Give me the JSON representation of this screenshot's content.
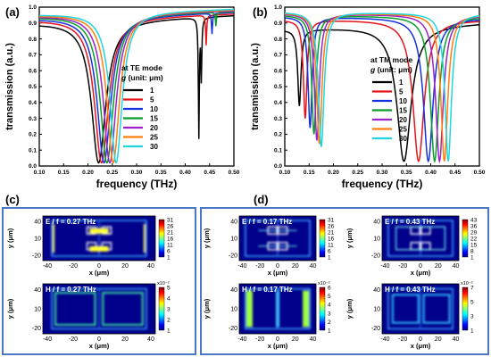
{
  "chart_data": [
    {
      "panel": "(a)",
      "type": "line",
      "mode_label": "at TE mode",
      "legend_title_var": "g",
      "legend_title_unit": " (unit: μm)",
      "xlabel": "frequency (THz)",
      "ylabel": "transmission (a.u.)",
      "xlim": [
        0.1,
        0.5
      ],
      "ylim": [
        0.0,
        1.0
      ],
      "xticks": [
        "0.10",
        "0.15",
        "0.20",
        "0.25",
        "0.30",
        "0.35",
        "0.40",
        "0.45",
        "0.50"
      ],
      "yticks": [
        "0.0",
        "0.1",
        "0.2",
        "0.3",
        "0.4",
        "0.5",
        "0.6",
        "0.7",
        "0.8",
        "0.9",
        "1.0"
      ],
      "legend_position": "right",
      "series": [
        {
          "name": "1",
          "color": "#000000",
          "dip_x": 0.222,
          "dip_y": 0.02,
          "dip_w": 0.036,
          "base_left": 0.9,
          "base_right": 0.95,
          "tail": 0.014,
          "spikes": [
            [
              0.428,
              0.15
            ],
            [
              0.433,
              0.52
            ]
          ]
        },
        {
          "name": "5",
          "color": "#e5141a",
          "dip_x": 0.228,
          "dip_y": 0.02,
          "dip_w": 0.035,
          "base_left": 0.92,
          "base_right": 0.96,
          "tail": 0.012,
          "spikes": [
            [
              0.443,
              0.76
            ]
          ]
        },
        {
          "name": "10",
          "color": "#1530e0",
          "dip_x": 0.233,
          "dip_y": 0.02,
          "dip_w": 0.034,
          "base_left": 0.93,
          "base_right": 0.97,
          "tail": 0.01,
          "spikes": [
            [
              0.455,
              0.83
            ]
          ]
        },
        {
          "name": "15",
          "color": "#0a9d2a",
          "dip_x": 0.239,
          "dip_y": 0.02,
          "dip_w": 0.033,
          "base_left": 0.94,
          "base_right": 0.975,
          "tail": 0.009,
          "spikes": [
            [
              0.463,
              0.88
            ]
          ]
        },
        {
          "name": "20",
          "color": "#9a22c8",
          "dip_x": 0.245,
          "dip_y": 0.02,
          "dip_w": 0.032,
          "base_left": 0.945,
          "base_right": 0.98,
          "tail": 0.008,
          "spikes": []
        },
        {
          "name": "25",
          "color": "#ff7f0a",
          "dip_x": 0.252,
          "dip_y": 0.02,
          "dip_w": 0.031,
          "base_left": 0.95,
          "base_right": 0.985,
          "tail": 0.007,
          "spikes": []
        },
        {
          "name": "30",
          "color": "#1fd6e0",
          "dip_x": 0.258,
          "dip_y": 0.02,
          "dip_w": 0.03,
          "base_left": 0.955,
          "base_right": 0.99,
          "tail": 0.006,
          "spikes": []
        }
      ]
    },
    {
      "panel": "(b)",
      "type": "line",
      "mode_label": "at TM mode",
      "legend_title_var": "g",
      "legend_title_unit": " (unit: μm)",
      "xlabel": "frequency (THz)",
      "ylabel": "transmission (a.u.)",
      "xlim": [
        0.1,
        0.5
      ],
      "ylim": [
        0.0,
        1.0
      ],
      "xticks": [
        "0.10",
        "0.15",
        "0.20",
        "0.25",
        "0.30",
        "0.35",
        "0.40",
        "0.45",
        "0.50"
      ],
      "yticks": [
        "0.0",
        "0.1",
        "0.2",
        "0.3",
        "0.4",
        "0.5",
        "0.6",
        "0.7",
        "0.8",
        "0.9",
        "1.0"
      ],
      "legend_position": "right",
      "series": [
        {
          "name": "1",
          "color": "#000000",
          "dips": [
            [
              0.13,
              0.38,
              0.008
            ],
            [
              0.345,
              0.03,
              0.035
            ]
          ],
          "base_left": 0.86,
          "base_right": 0.9
        },
        {
          "name": "5",
          "color": "#e5141a",
          "dips": [
            [
              0.142,
              0.3,
              0.009
            ],
            [
              0.375,
              0.03,
              0.028
            ]
          ],
          "base_left": 0.92,
          "base_right": 0.92
        },
        {
          "name": "10",
          "color": "#1530e0",
          "dips": [
            [
              0.152,
              0.24,
              0.01
            ],
            [
              0.395,
              0.03,
              0.024
            ]
          ],
          "base_left": 0.94,
          "base_right": 0.93
        },
        {
          "name": "15",
          "color": "#0a9d2a",
          "dips": [
            [
              0.16,
              0.2,
              0.011
            ],
            [
              0.408,
              0.03,
              0.021
            ]
          ],
          "base_left": 0.95,
          "base_right": 0.94
        },
        {
          "name": "20",
          "color": "#9a22c8",
          "dips": [
            [
              0.166,
              0.16,
              0.012
            ],
            [
              0.418,
              0.03,
              0.019
            ]
          ],
          "base_left": 0.96,
          "base_right": 0.95
        },
        {
          "name": "25",
          "color": "#ff7f0a",
          "dips": [
            [
              0.171,
              0.14,
              0.013
            ],
            [
              0.428,
              0.03,
              0.017
            ]
          ],
          "base_left": 0.965,
          "base_right": 0.955
        },
        {
          "name": "30",
          "color": "#1fd6e0",
          "dips": [
            [
              0.175,
              0.12,
              0.014
            ],
            [
              0.436,
              0.03,
              0.016
            ]
          ],
          "base_left": 0.97,
          "base_right": 0.96
        }
      ]
    }
  ],
  "panels": {
    "c_label": "(c)",
    "d_label": "(d)"
  },
  "field_maps": [
    {
      "id": "c-e",
      "label": "E / f = 0.27 THz",
      "kind": "E",
      "pattern": "te",
      "scale_exp": "",
      "colorbar": [
        "31",
        "26",
        "21",
        "16",
        "11",
        "6",
        "1"
      ]
    },
    {
      "id": "c-h",
      "label": "H / f = 0.27 THz",
      "kind": "H",
      "pattern": "te-h",
      "scale_exp": "x10⁻²",
      "colorbar": [
        "5",
        "4",
        "3",
        "2",
        "1"
      ]
    },
    {
      "id": "d-e1",
      "label": "E / f = 0.17 THz",
      "kind": "E",
      "pattern": "tm-low",
      "scale_exp": "",
      "colorbar": [
        "31",
        "26",
        "21",
        "16",
        "11",
        "6",
        "1"
      ]
    },
    {
      "id": "d-h1",
      "label": "H / f = 0.17 THz",
      "kind": "H",
      "pattern": "tm-low-h",
      "scale_exp": "x10⁻²",
      "colorbar": [
        "6",
        "5",
        "4",
        "3",
        "2",
        "1"
      ]
    },
    {
      "id": "d-e2",
      "label": "E / f = 0.43 THz",
      "kind": "E",
      "pattern": "tm-high",
      "scale_exp": "",
      "colorbar": [
        "43",
        "36",
        "29",
        "22",
        "15",
        "8",
        "1"
      ]
    },
    {
      "id": "d-h2",
      "label": "H / f = 0.43 THz",
      "kind": "H",
      "pattern": "tm-high-h",
      "scale_exp": "x10⁻²",
      "colorbar": [
        "7",
        "5",
        "3",
        "1"
      ]
    }
  ],
  "field_axes": {
    "ylabel": "y (μm)",
    "xlabel": "x (μm)",
    "xticks": [
      "-40",
      "-20",
      "0",
      "20",
      "40"
    ],
    "yticks": [
      "40",
      "10",
      "-20"
    ]
  },
  "colormap": [
    "#00007f",
    "#0000ff",
    "#0080ff",
    "#00ffff",
    "#80ff80",
    "#ffff00",
    "#ff8000",
    "#ff0000",
    "#7f0000"
  ]
}
